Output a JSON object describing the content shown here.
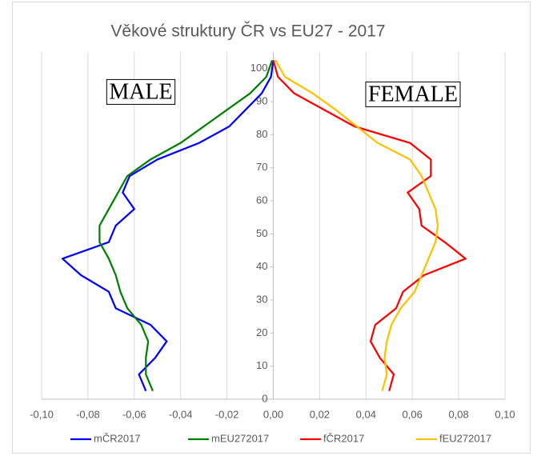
{
  "chart_data": {
    "type": "line",
    "title": "Věkové struktury ČR vs EU27 - 2017",
    "annotations": [
      "MALE",
      "FEMALE"
    ],
    "y": [
      2.5,
      7.5,
      12.5,
      17.5,
      22.5,
      27.5,
      32.5,
      37.5,
      42.5,
      47.5,
      52.5,
      57.5,
      62.5,
      67.5,
      72.5,
      77.5,
      82.5,
      87.5,
      92.5,
      97.5,
      102.5
    ],
    "series": [
      {
        "name": "mČR2017",
        "color": "#0000ff",
        "values": [
          -0.055,
          -0.058,
          -0.051,
          -0.046,
          -0.053,
          -0.068,
          -0.071,
          -0.083,
          -0.091,
          -0.071,
          -0.068,
          -0.06,
          -0.065,
          -0.062,
          -0.05,
          -0.032,
          -0.019,
          -0.012,
          -0.005,
          -0.001,
          0.0
        ]
      },
      {
        "name": "mEU272017",
        "color": "#008000",
        "values": [
          -0.052,
          -0.055,
          -0.055,
          -0.054,
          -0.057,
          -0.063,
          -0.066,
          -0.068,
          -0.071,
          -0.075,
          -0.075,
          -0.071,
          -0.067,
          -0.063,
          -0.053,
          -0.04,
          -0.03,
          -0.02,
          -0.01,
          -0.003,
          -0.0005
        ]
      },
      {
        "name": "fČR2017",
        "color": "#ff0000",
        "values": [
          0.05,
          0.052,
          0.046,
          0.042,
          0.044,
          0.053,
          0.056,
          0.065,
          0.083,
          0.074,
          0.064,
          0.063,
          0.058,
          0.068,
          0.068,
          0.059,
          0.035,
          0.022,
          0.009,
          0.002,
          0.0
        ]
      },
      {
        "name": "fEU272017",
        "color": "#ffc000",
        "values": [
          0.047,
          0.049,
          0.048,
          0.049,
          0.051,
          0.055,
          0.061,
          0.064,
          0.067,
          0.07,
          0.071,
          0.07,
          0.067,
          0.064,
          0.059,
          0.045,
          0.036,
          0.027,
          0.017,
          0.005,
          0.001
        ]
      }
    ],
    "xlim": [
      -0.1,
      0.1
    ],
    "xticks": [
      {
        "value": -0.1,
        "label": "-0,10"
      },
      {
        "value": -0.08,
        "label": "-0,08"
      },
      {
        "value": -0.06,
        "label": "-0,06"
      },
      {
        "value": -0.04,
        "label": "-0,04"
      },
      {
        "value": -0.02,
        "label": "-0,02"
      },
      {
        "value": 0,
        "label": "0,00"
      },
      {
        "value": 0.02,
        "label": "0,02"
      },
      {
        "value": 0.04,
        "label": "0,04"
      },
      {
        "value": 0.06,
        "label": "0,06"
      },
      {
        "value": 0.08,
        "label": "0,08"
      },
      {
        "value": 0.1,
        "label": "0,10"
      }
    ],
    "ylim": [
      0,
      105
    ],
    "yticks": [
      0,
      10,
      20,
      30,
      40,
      50,
      60,
      70,
      80,
      90,
      100
    ],
    "grid": true
  }
}
